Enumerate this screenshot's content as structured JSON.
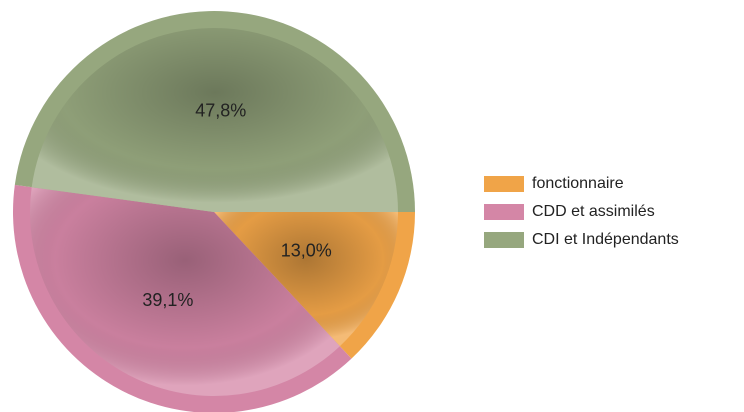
{
  "chart_data": {
    "type": "pie",
    "categories": [
      "fonctionnaire",
      "CDD et assimilés",
      "CDI et Indépendants"
    ],
    "values": [
      13.0,
      39.1,
      47.8
    ],
    "value_labels": [
      "13,0%",
      "39,1%",
      "47,8%"
    ],
    "colors": [
      "#f0a448",
      "#d486a6",
      "#96a77e"
    ],
    "legend": "right"
  }
}
